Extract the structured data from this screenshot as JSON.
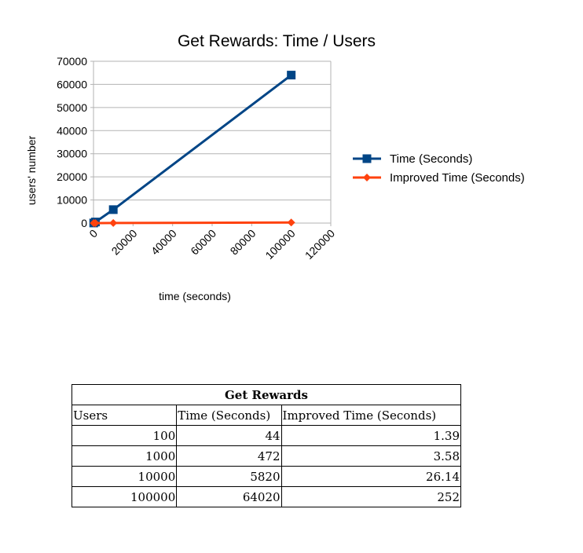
{
  "chart_data": {
    "type": "line",
    "title": "Get Rewards: Time / Users",
    "xlabel": "time (seconds)",
    "ylabel": "users' number",
    "xlim": [
      0,
      120000
    ],
    "ylim": [
      0,
      70000
    ],
    "x_ticks": [
      "0",
      "20000",
      "40000",
      "60000",
      "80000",
      "100000",
      "120000"
    ],
    "y_ticks": [
      "0",
      "10000",
      "20000",
      "30000",
      "40000",
      "50000",
      "60000",
      "70000"
    ],
    "grid": true,
    "legend_position": "right",
    "x": [
      100,
      1000,
      10000,
      100000
    ],
    "series": [
      {
        "name": "Time (Seconds)",
        "values": [
          44,
          472,
          5820,
          64020
        ],
        "color": "#004586",
        "marker": "square"
      },
      {
        "name": "Improved Time (Seconds)",
        "values": [
          1.39,
          3.58,
          26.14,
          252
        ],
        "color": "#ff420e",
        "marker": "diamond"
      }
    ]
  },
  "table": {
    "title": "Get Rewards",
    "headers": [
      "Users",
      "Time (Seconds)",
      "Improved Time (Seconds)"
    ],
    "rows": [
      [
        "100",
        "44",
        "1.39"
      ],
      [
        "1000",
        "472",
        "3.58"
      ],
      [
        "10000",
        "5820",
        "26.14"
      ],
      [
        "100000",
        "64020",
        "252"
      ]
    ]
  }
}
